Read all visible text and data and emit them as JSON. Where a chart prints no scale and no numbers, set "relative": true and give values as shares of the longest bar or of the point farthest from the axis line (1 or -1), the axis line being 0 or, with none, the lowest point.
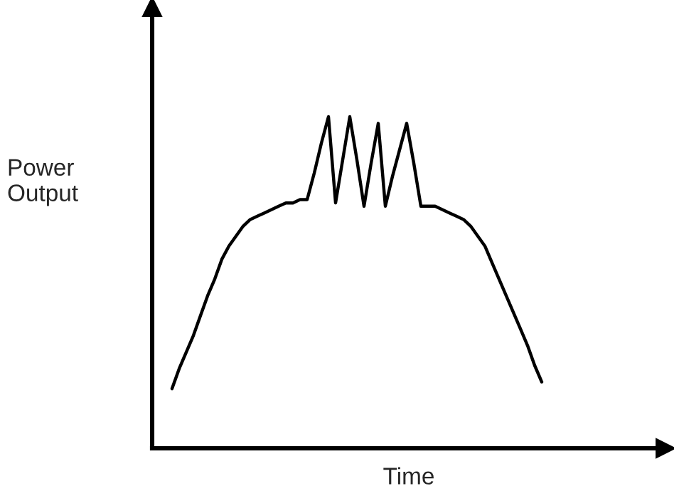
{
  "chart_data": {
    "type": "line",
    "relative": true,
    "xlabel": "Time",
    "ylabel": "Power\nOutput",
    "grid": false,
    "legend": false,
    "marker": "none",
    "line_style": "solid",
    "categories": [
      null,
      null,
      null,
      null,
      null,
      null,
      null,
      null,
      null,
      null,
      null,
      null,
      null,
      null,
      null,
      null,
      null,
      null,
      null,
      null,
      null,
      null,
      null,
      null,
      null,
      null,
      null,
      null,
      null,
      null,
      null,
      null,
      null,
      null,
      null,
      null,
      null,
      null,
      null,
      null,
      null,
      null,
      null,
      null,
      null,
      null,
      null,
      null,
      null,
      null,
      null,
      null,
      null
    ],
    "series": [
      {
        "color": "#000000",
        "values": [
          0.18,
          0.24,
          0.29,
          0.34,
          0.4,
          0.46,
          0.51,
          0.57,
          0.61,
          0.64,
          0.67,
          0.69,
          0.7,
          0.71,
          0.72,
          0.73,
          0.74,
          0.74,
          0.75,
          0.75,
          0.83,
          0.92,
          1,
          0.74,
          0.87,
          1,
          0.87,
          0.73,
          0.86,
          0.98,
          0.73,
          0.82,
          0.9,
          0.98,
          0.86,
          0.73,
          0.73,
          0.73,
          0.72,
          0.71,
          0.7,
          0.69,
          0.67,
          0.64,
          0.61,
          0.56,
          0.51,
          0.46,
          0.41,
          0.36,
          0.31,
          0.25,
          0.2
        ]
      }
    ]
  }
}
